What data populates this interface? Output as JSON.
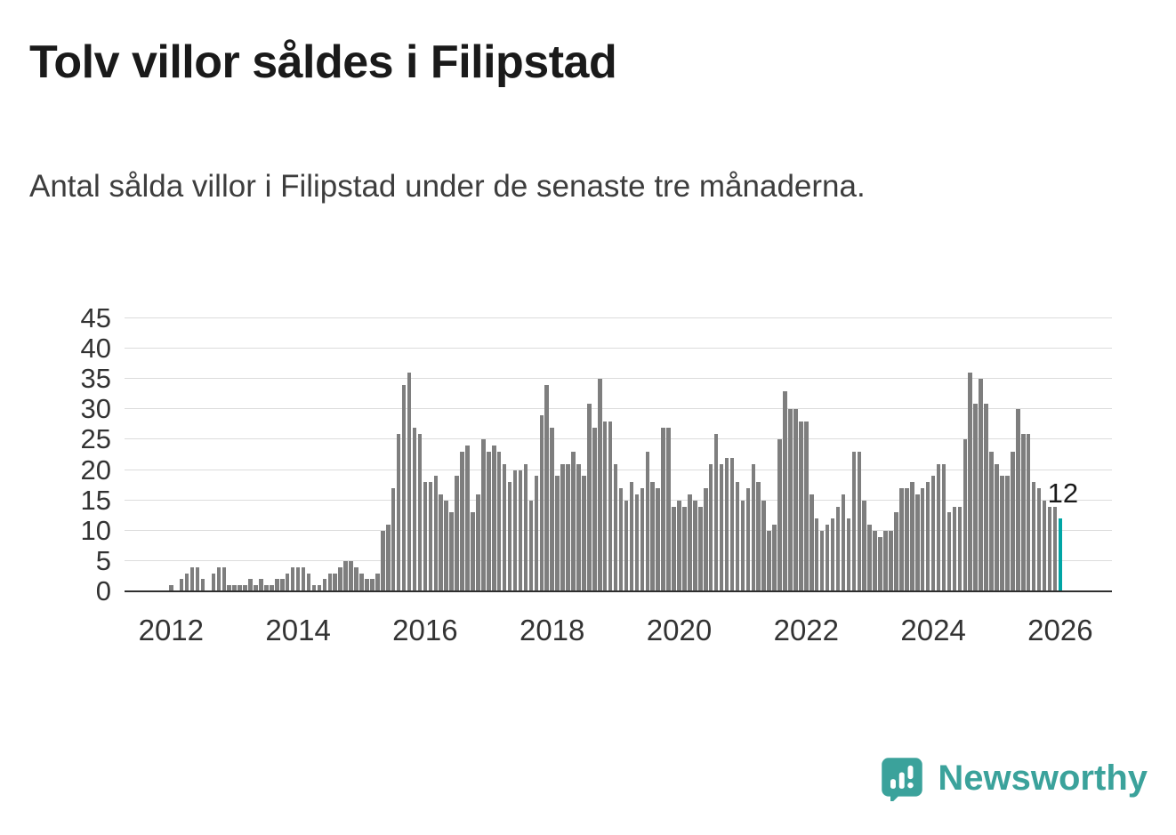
{
  "header": {
    "title": "Tolv villor såldes i Filipstad",
    "subtitle": "Antal sålda villor i Filipstad under de senaste tre månaderna."
  },
  "chart_data": {
    "type": "bar",
    "title": "Tolv villor såldes i Filipstad",
    "subtitle": "Antal sålda villor i Filipstad under de senaste tre månaderna.",
    "xlabel": "",
    "ylabel": "",
    "frequency": "monthly",
    "x_start": "2012-01",
    "x_end": "2026-01",
    "start_year": 2012,
    "ylim": [
      0,
      45
    ],
    "yticks": [
      0,
      5,
      10,
      15,
      20,
      25,
      30,
      35,
      40,
      45
    ],
    "xticks": [
      2012,
      2014,
      2016,
      2018,
      2020,
      2022,
      2024,
      2026
    ],
    "grid": "horizontal",
    "legend": "none",
    "bar_color": "#7e7e7e",
    "highlight_color": "#00a5a5",
    "highlight_index": "last",
    "annotation": {
      "text": "12",
      "value": 12
    },
    "values": [
      1,
      0,
      2,
      3,
      4,
      4,
      2,
      0,
      3,
      4,
      4,
      1,
      1,
      1,
      1,
      2,
      1,
      2,
      1,
      1,
      2,
      2,
      3,
      4,
      4,
      4,
      3,
      1,
      1,
      2,
      3,
      3,
      4,
      5,
      5,
      4,
      3,
      2,
      2,
      3,
      10,
      11,
      17,
      26,
      34,
      36,
      27,
      26,
      18,
      18,
      19,
      16,
      15,
      13,
      19,
      23,
      24,
      13,
      16,
      25,
      23,
      24,
      23,
      21,
      18,
      20,
      20,
      21,
      15,
      19,
      29,
      34,
      27,
      19,
      21,
      21,
      23,
      21,
      19,
      31,
      27,
      35,
      28,
      28,
      21,
      17,
      15,
      18,
      16,
      17,
      23,
      18,
      17,
      27,
      27,
      14,
      15,
      14,
      16,
      15,
      14,
      17,
      21,
      26,
      21,
      22,
      22,
      18,
      15,
      17,
      21,
      18,
      15,
      10,
      11,
      25,
      33,
      30,
      30,
      28,
      28,
      16,
      12,
      10,
      11,
      12,
      14,
      16,
      12,
      23,
      23,
      15,
      11,
      10,
      9,
      10,
      10,
      13,
      17,
      17,
      18,
      16,
      17,
      18,
      19,
      21,
      21,
      13,
      14,
      14,
      25,
      36,
      31,
      35,
      31,
      23,
      21,
      19,
      19,
      23,
      30,
      26,
      26,
      18,
      17,
      15,
      14,
      14,
      12
    ]
  },
  "footer": {
    "brand": "Newsworthy",
    "brand_color": "#3ba29b"
  }
}
